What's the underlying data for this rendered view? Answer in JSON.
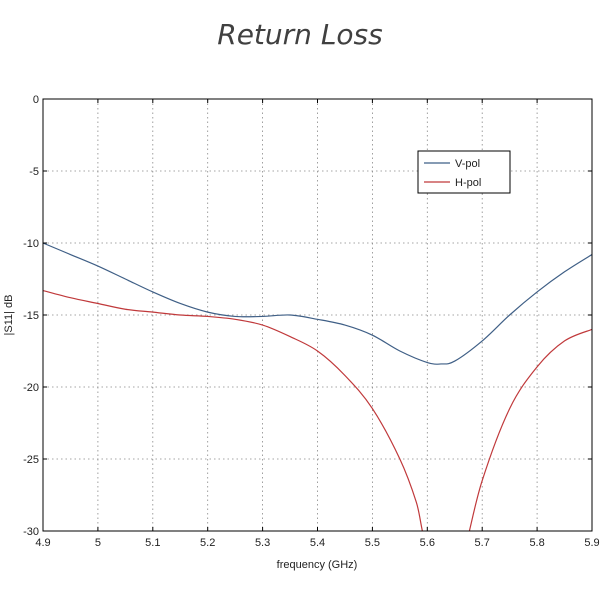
{
  "chart_data": {
    "type": "line",
    "title": "Return Loss",
    "xlabel": "frequency (GHz)",
    "ylabel": "|S11| dB",
    "xlim": [
      4.9,
      5.9
    ],
    "ylim": [
      -30,
      0
    ],
    "xticks": [
      "4.9",
      "5",
      "5.1",
      "5.2",
      "5.3",
      "5.4",
      "5.5",
      "5.6",
      "5.7",
      "5.8",
      "5.9"
    ],
    "yticks": [
      "0",
      "-5",
      "-10",
      "-15",
      "-20",
      "-25",
      "-30"
    ],
    "grid": true,
    "legend_position": "top-right",
    "series": [
      {
        "name": "V-pol",
        "color": "#3f5f86",
        "x": [
          4.9,
          4.95,
          5.0,
          5.05,
          5.1,
          5.15,
          5.2,
          5.25,
          5.3,
          5.35,
          5.4,
          5.45,
          5.5,
          5.55,
          5.6,
          5.625,
          5.65,
          5.7,
          5.75,
          5.8,
          5.85,
          5.9
        ],
        "y": [
          -10.0,
          -10.8,
          -11.6,
          -12.5,
          -13.4,
          -14.2,
          -14.8,
          -15.1,
          -15.1,
          -15.0,
          -15.3,
          -15.7,
          -16.4,
          -17.5,
          -18.3,
          -18.4,
          -18.2,
          -16.8,
          -15.0,
          -13.4,
          -12.0,
          -10.8
        ]
      },
      {
        "name": "H-pol",
        "color": "#c0393b",
        "x": [
          4.9,
          4.95,
          5.0,
          5.05,
          5.1,
          5.15,
          5.2,
          5.25,
          5.3,
          5.35,
          5.4,
          5.45,
          5.5,
          5.55,
          5.58,
          5.6,
          5.65,
          5.67,
          5.7,
          5.75,
          5.8,
          5.85,
          5.9
        ],
        "y": [
          -13.3,
          -13.8,
          -14.2,
          -14.6,
          -14.8,
          -15.0,
          -15.1,
          -15.3,
          -15.7,
          -16.5,
          -17.5,
          -19.2,
          -21.5,
          -25.0,
          -28.0,
          -31.0,
          -33.0,
          -31.0,
          -26.5,
          -21.5,
          -18.6,
          -16.8,
          -16.0
        ]
      }
    ]
  }
}
